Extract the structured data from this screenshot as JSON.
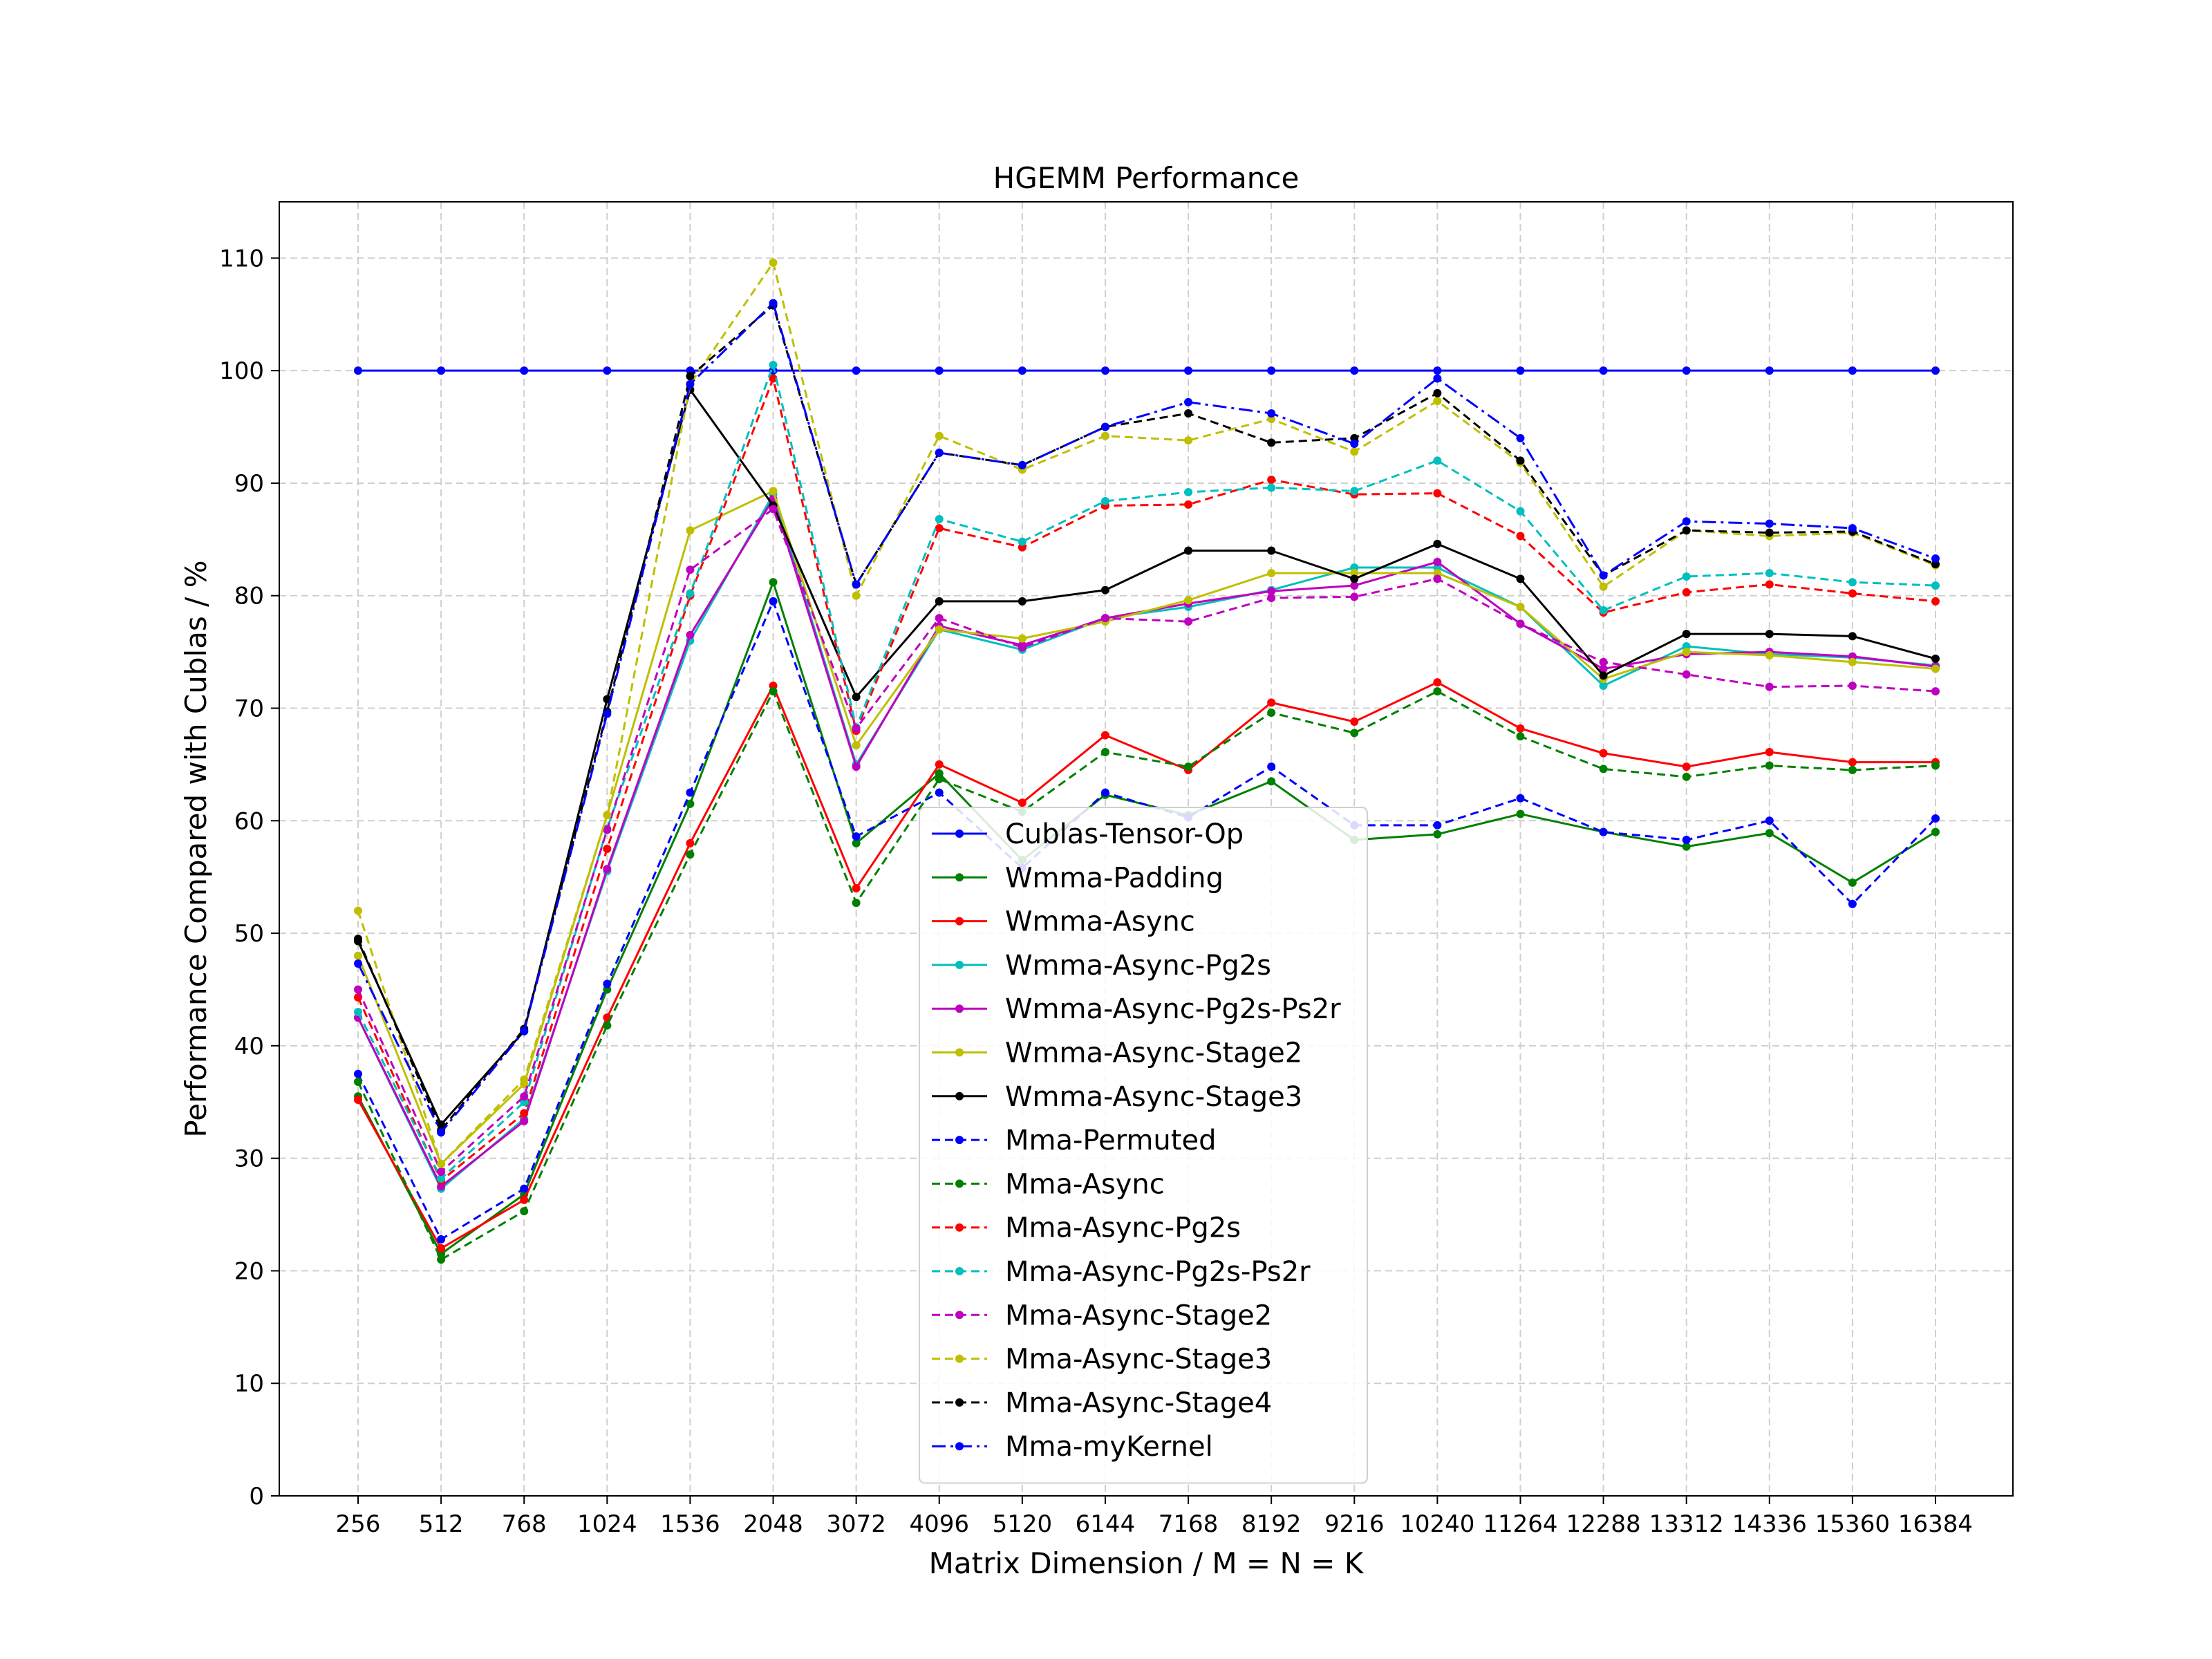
{
  "chart_data": {
    "type": "line",
    "title": "HGEMM Performance",
    "xlabel": "Matrix Dimension / M = N = K",
    "ylabel": "Performance Compared with Cublas / %",
    "categories": [
      "256",
      "512",
      "768",
      "1024",
      "1536",
      "2048",
      "3072",
      "4096",
      "5120",
      "6144",
      "7168",
      "8192",
      "9216",
      "10240",
      "11264",
      "12288",
      "13312",
      "14336",
      "15360",
      "16384"
    ],
    "ylim": [
      0,
      115
    ],
    "yticks": [
      0,
      10,
      20,
      30,
      40,
      50,
      60,
      70,
      80,
      90,
      100,
      110
    ],
    "grid": true,
    "legend_position": "lower center",
    "series": [
      {
        "name": "Cublas-Tensor-Op",
        "color": "#0000ff",
        "dash": "solid",
        "values": [
          100,
          100,
          100,
          100,
          100,
          100,
          100,
          100,
          100,
          100,
          100,
          100,
          100,
          100,
          100,
          100,
          100,
          100,
          100,
          100
        ]
      },
      {
        "name": "Wmma-Padding",
        "color": "#008000",
        "dash": "solid",
        "values": [
          35.5,
          21.5,
          26.8,
          45,
          61.5,
          81.2,
          58,
          64.2,
          56.5,
          62.3,
          60.5,
          63.5,
          58.3,
          58.8,
          60.6,
          59,
          57.7,
          58.9,
          54.5,
          59
        ]
      },
      {
        "name": "Wmma-Async",
        "color": "#ff0000",
        "dash": "solid",
        "values": [
          35.2,
          22,
          26.3,
          42.5,
          58,
          72,
          54,
          65,
          61.6,
          67.6,
          64.5,
          70.5,
          68.8,
          72.3,
          68.2,
          66,
          64.8,
          66.1,
          65.2,
          65.2
        ]
      },
      {
        "name": "Wmma-Async-Pg2s",
        "color": "#00bfbf",
        "dash": "solid",
        "values": [
          42.5,
          27.3,
          33.5,
          55.5,
          76,
          89,
          65,
          77,
          75.2,
          78,
          79,
          80.5,
          82.5,
          82.5,
          79,
          72,
          75.5,
          74.8,
          74.5,
          73.8
        ]
      },
      {
        "name": "Wmma-Async-Pg2s-Ps2r",
        "color": "#bf00bf",
        "dash": "solid",
        "values": [
          42.5,
          27.5,
          33.3,
          55.7,
          76.5,
          88.6,
          64.8,
          77.3,
          75.6,
          78,
          79.3,
          80.4,
          80.9,
          83,
          77.5,
          73.5,
          74.8,
          75,
          74.6,
          73.7
        ]
      },
      {
        "name": "Wmma-Async-Stage2",
        "color": "#bfbf00",
        "dash": "solid",
        "values": [
          48,
          29.5,
          36.6,
          60.5,
          85.8,
          89.3,
          66.7,
          77,
          76.2,
          77.7,
          79.6,
          82,
          82,
          82,
          79,
          72.6,
          75,
          74.7,
          74.1,
          73.5
        ]
      },
      {
        "name": "Wmma-Async-Stage3",
        "color": "#000000",
        "dash": "solid",
        "values": [
          49.3,
          33,
          41.3,
          70.8,
          98.3,
          88,
          71,
          79.5,
          79.5,
          80.5,
          84,
          84,
          81.5,
          84.6,
          81.5,
          72.9,
          76.6,
          76.6,
          76.4,
          74.4
        ]
      },
      {
        "name": "Mma-Permuted",
        "color": "#0000ff",
        "dash": "dashed",
        "values": [
          37.5,
          22.8,
          27.3,
          45.5,
          62.5,
          79.5,
          58.6,
          62.5,
          55.8,
          62.5,
          60.3,
          64.8,
          59.6,
          59.6,
          62,
          59,
          58.3,
          60,
          52.6,
          60.2
        ]
      },
      {
        "name": "Mma-Async",
        "color": "#008000",
        "dash": "dashed",
        "values": [
          36.8,
          21,
          25.3,
          41.8,
          57,
          71.5,
          52.7,
          63.7,
          60.8,
          66.1,
          64.8,
          69.6,
          67.8,
          71.5,
          67.5,
          64.6,
          63.9,
          64.9,
          64.5,
          64.9
        ]
      },
      {
        "name": "Mma-Async-Pg2s",
        "color": "#ff0000",
        "dash": "dashed",
        "values": [
          44.3,
          28,
          34,
          57.5,
          80,
          99.3,
          68,
          86,
          84.3,
          88,
          88.1,
          90.3,
          89,
          89.1,
          85.3,
          78.5,
          80.3,
          81,
          80.2,
          79.5
        ]
      },
      {
        "name": "Mma-Async-Pg2s-Ps2r",
        "color": "#00bfbf",
        "dash": "dashed",
        "values": [
          43,
          28.2,
          35,
          59.3,
          80.2,
          100.5,
          68.3,
          86.8,
          84.8,
          88.4,
          89.2,
          89.6,
          89.3,
          92,
          87.5,
          78.7,
          81.7,
          82,
          81.2,
          80.9
        ]
      },
      {
        "name": "Mma-Async-Stage2",
        "color": "#bf00bf",
        "dash": "dashed",
        "values": [
          45,
          28.8,
          35.5,
          59.2,
          82.3,
          87.7,
          68.2,
          78,
          75.4,
          78,
          77.7,
          79.8,
          79.9,
          81.5,
          77.5,
          74.1,
          73,
          71.9,
          72,
          71.5
        ]
      },
      {
        "name": "Mma-Async-Stage3",
        "color": "#bfbf00",
        "dash": "dashed",
        "values": [
          52,
          29.5,
          37,
          60.5,
          98.8,
          109.6,
          80,
          94.2,
          91.2,
          94.2,
          93.8,
          95.7,
          92.8,
          97.3,
          91.8,
          80.8,
          85.8,
          85.3,
          85.6,
          82.7
        ]
      },
      {
        "name": "Mma-Async-Stage4",
        "color": "#000000",
        "dash": "dashed",
        "values": [
          49.5,
          32.5,
          41.5,
          69.7,
          99.5,
          105.8,
          81,
          92.7,
          91.6,
          95,
          96.2,
          93.6,
          94,
          98,
          92,
          81.8,
          85.8,
          85.6,
          85.7,
          82.8
        ]
      },
      {
        "name": "Mma-myKernel",
        "color": "#0000ff",
        "dash": "dashdot",
        "values": [
          47.3,
          32.3,
          41.3,
          69.5,
          98.8,
          106,
          81,
          92.7,
          91.6,
          95,
          97.2,
          96.2,
          93.5,
          99.3,
          94,
          81.8,
          86.6,
          86.4,
          86,
          83.3
        ]
      }
    ]
  }
}
